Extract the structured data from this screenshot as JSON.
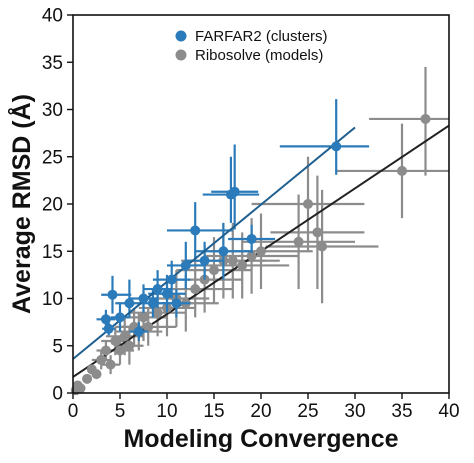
{
  "chart_data": {
    "type": "scatter",
    "xlabel": "Modeling Convergence",
    "ylabel": "Average RMSD (Å)",
    "xlim": [
      0,
      40
    ],
    "ylim": [
      0,
      40
    ],
    "x_ticks": [
      0,
      5,
      10,
      15,
      20,
      25,
      30,
      35,
      40
    ],
    "y_ticks": [
      0,
      5,
      10,
      15,
      20,
      25,
      30,
      35,
      40
    ],
    "grid": false,
    "legend_position": "top-center",
    "series": [
      {
        "name": "FARFAR2 (clusters)",
        "color": "#2b7bba",
        "fit_line": {
          "x": [
            0,
            30
          ],
          "y": [
            3.6,
            28.1
          ]
        },
        "points": [
          {
            "x": 3.5,
            "y": 7.8,
            "xerr": [
              1.0,
              1.0
            ],
            "yerr": [
              1.0,
              1.0
            ]
          },
          {
            "x": 3.8,
            "y": 6.8,
            "xerr": [
              0.7,
              0.7
            ],
            "yerr": [
              0.7,
              0.7
            ]
          },
          {
            "x": 4.2,
            "y": 10.4,
            "xerr": [
              1.2,
              2.0
            ],
            "yerr": [
              2.0,
              2.0
            ]
          },
          {
            "x": 5.0,
            "y": 8.0,
            "xerr": [
              1.0,
              1.0
            ],
            "yerr": [
              1.5,
              1.5
            ]
          },
          {
            "x": 6.0,
            "y": 9.5,
            "xerr": [
              1.5,
              1.5
            ],
            "yerr": [
              1.5,
              2.5
            ]
          },
          {
            "x": 7.0,
            "y": 6.5,
            "xerr": [
              1.0,
              1.0
            ],
            "yerr": [
              1.0,
              1.0
            ]
          },
          {
            "x": 7.5,
            "y": 10.0,
            "xerr": [
              1.5,
              1.5
            ],
            "yerr": [
              1.5,
              1.5
            ]
          },
          {
            "x": 8.5,
            "y": 9.5,
            "xerr": [
              1.5,
              1.5
            ],
            "yerr": [
              1.5,
              1.5
            ]
          },
          {
            "x": 9.0,
            "y": 11.0,
            "xerr": [
              1.5,
              1.5
            ],
            "yerr": [
              2.0,
              2.0
            ]
          },
          {
            "x": 10.0,
            "y": 10.5,
            "xerr": [
              2.0,
              2.0
            ],
            "yerr": [
              2.0,
              2.0
            ]
          },
          {
            "x": 10.5,
            "y": 12.0,
            "xerr": [
              2.0,
              2.0
            ],
            "yerr": [
              2.0,
              2.0
            ]
          },
          {
            "x": 11.0,
            "y": 9.5,
            "xerr": [
              1.5,
              1.5
            ],
            "yerr": [
              1.5,
              1.5
            ]
          },
          {
            "x": 12.0,
            "y": 13.5,
            "xerr": [
              2.0,
              2.0
            ],
            "yerr": [
              2.5,
              2.5
            ]
          },
          {
            "x": 13.0,
            "y": 17.2,
            "xerr": [
              3.0,
              4.0
            ],
            "yerr": [
              3.0,
              3.0
            ]
          },
          {
            "x": 14.0,
            "y": 14.0,
            "xerr": [
              2.0,
              2.0
            ],
            "yerr": [
              2.0,
              2.0
            ]
          },
          {
            "x": 16.0,
            "y": 15.0,
            "xerr": [
              3.0,
              3.0
            ],
            "yerr": [
              3.0,
              3.0
            ]
          },
          {
            "x": 16.8,
            "y": 21.0,
            "xerr": [
              3.0,
              3.0
            ],
            "yerr": [
              3.0,
              4.0
            ]
          },
          {
            "x": 17.2,
            "y": 21.3,
            "xerr": [
              2.5,
              2.5
            ],
            "yerr": [
              4.0,
              5.0
            ]
          },
          {
            "x": 19.0,
            "y": 16.3,
            "xerr": [
              2.5,
              2.5
            ],
            "yerr": [
              1.5,
              1.5
            ]
          },
          {
            "x": 28.0,
            "y": 26.1,
            "xerr": [
              6.0,
              3.5
            ],
            "yerr": [
              3.0,
              5.0
            ]
          }
        ]
      },
      {
        "name": "Ribosolve (models)",
        "color": "#8c8c8c",
        "fit_line": {
          "x": [
            0,
            40
          ],
          "y": [
            1.7,
            28.3
          ]
        },
        "points": [
          {
            "x": 0.3,
            "y": 0.3,
            "xerr": [
              0.2,
              0.2
            ],
            "yerr": [
              0.2,
              0.2
            ]
          },
          {
            "x": 0.5,
            "y": 0.8,
            "xerr": [
              0.3,
              0.3
            ],
            "yerr": [
              0.3,
              0.3
            ]
          },
          {
            "x": 0.8,
            "y": 0.5,
            "xerr": [
              0.3,
              0.3
            ],
            "yerr": [
              0.3,
              0.3
            ]
          },
          {
            "x": 1.5,
            "y": 1.5,
            "xerr": [
              0.5,
              0.5
            ],
            "yerr": [
              0.5,
              0.5
            ]
          },
          {
            "x": 2.0,
            "y": 2.5,
            "xerr": [
              0.5,
              0.5
            ],
            "yerr": [
              0.5,
              0.5
            ]
          },
          {
            "x": 2.5,
            "y": 2.0,
            "xerr": [
              0.5,
              0.5
            ],
            "yerr": [
              0.5,
              0.5
            ]
          },
          {
            "x": 3.0,
            "y": 3.5,
            "xerr": [
              1.0,
              1.0
            ],
            "yerr": [
              1.0,
              1.0
            ]
          },
          {
            "x": 3.5,
            "y": 4.5,
            "xerr": [
              1.0,
              1.0
            ],
            "yerr": [
              1.0,
              1.0
            ]
          },
          {
            "x": 4.0,
            "y": 3.0,
            "xerr": [
              1.0,
              1.0
            ],
            "yerr": [
              1.0,
              1.0
            ]
          },
          {
            "x": 4.5,
            "y": 5.5,
            "xerr": [
              1.5,
              1.5
            ],
            "yerr": [
              1.5,
              1.5
            ]
          },
          {
            "x": 5.0,
            "y": 4.5,
            "xerr": [
              1.5,
              1.5
            ],
            "yerr": [
              1.5,
              1.5
            ]
          },
          {
            "x": 5.5,
            "y": 6.0,
            "xerr": [
              2.0,
              2.0
            ],
            "yerr": [
              2.0,
              2.0
            ]
          },
          {
            "x": 6.0,
            "y": 5.0,
            "xerr": [
              1.5,
              1.5
            ],
            "yerr": [
              2.0,
              2.0
            ]
          },
          {
            "x": 6.5,
            "y": 7.0,
            "xerr": [
              2.0,
              2.0
            ],
            "yerr": [
              2.0,
              2.0
            ]
          },
          {
            "x": 7.0,
            "y": 6.5,
            "xerr": [
              2.5,
              2.5
            ],
            "yerr": [
              2.0,
              2.0
            ]
          },
          {
            "x": 7.5,
            "y": 8.0,
            "xerr": [
              2.5,
              2.5
            ],
            "yerr": [
              2.5,
              2.5
            ]
          },
          {
            "x": 8.0,
            "y": 7.0,
            "xerr": [
              3.0,
              3.0
            ],
            "yerr": [
              2.0,
              2.0
            ]
          },
          {
            "x": 9.0,
            "y": 8.5,
            "xerr": [
              3.0,
              3.0
            ],
            "yerr": [
              2.5,
              2.5
            ]
          },
          {
            "x": 10.0,
            "y": 9.0,
            "xerr": [
              3.0,
              3.0
            ],
            "yerr": [
              3.0,
              3.0
            ]
          },
          {
            "x": 11.0,
            "y": 10.0,
            "xerr": [
              3.5,
              3.5
            ],
            "yerr": [
              3.0,
              3.0
            ]
          },
          {
            "x": 12.0,
            "y": 9.5,
            "xerr": [
              3.5,
              3.5
            ],
            "yerr": [
              3.0,
              3.0
            ]
          },
          {
            "x": 13.0,
            "y": 11.0,
            "xerr": [
              4.0,
              4.0
            ],
            "yerr": [
              3.0,
              3.0
            ]
          },
          {
            "x": 14.0,
            "y": 12.0,
            "xerr": [
              4.0,
              4.0
            ],
            "yerr": [
              3.5,
              3.5
            ]
          },
          {
            "x": 15.0,
            "y": 13.0,
            "xerr": [
              4.0,
              4.0
            ],
            "yerr": [
              3.5,
              3.5
            ]
          },
          {
            "x": 16.0,
            "y": 14.0,
            "xerr": [
              4.5,
              4.5
            ],
            "yerr": [
              4.0,
              4.0
            ]
          },
          {
            "x": 17.0,
            "y": 14.0,
            "xerr": [
              5.0,
              5.0
            ],
            "yerr": [
              4.0,
              4.0
            ]
          },
          {
            "x": 18.0,
            "y": 13.5,
            "xerr": [
              5.0,
              5.0
            ],
            "yerr": [
              3.5,
              3.5
            ]
          },
          {
            "x": 19.0,
            "y": 14.5,
            "xerr": [
              5.0,
              5.0
            ],
            "yerr": [
              4.0,
              4.0
            ]
          },
          {
            "x": 20.0,
            "y": 15.0,
            "xerr": [
              5.5,
              5.5
            ],
            "yerr": [
              4.0,
              4.0
            ]
          },
          {
            "x": 24.0,
            "y": 16.0,
            "xerr": [
              6.0,
              6.0
            ],
            "yerr": [
              5.0,
              5.0
            ]
          },
          {
            "x": 25.0,
            "y": 20.0,
            "xerr": [
              6.0,
              6.0
            ],
            "yerr": [
              5.0,
              5.0
            ]
          },
          {
            "x": 26.0,
            "y": 17.0,
            "xerr": [
              5.0,
              5.0
            ],
            "yerr": [
              6.0,
              6.0
            ]
          },
          {
            "x": 26.5,
            "y": 15.5,
            "xerr": [
              6.0,
              6.0
            ],
            "yerr": [
              6.0,
              6.0
            ]
          },
          {
            "x": 35.0,
            "y": 23.5,
            "xerr": [
              7.0,
              5.0
            ],
            "yerr": [
              5.0,
              5.0
            ]
          },
          {
            "x": 37.5,
            "y": 29.0,
            "xerr": [
              6.0,
              2.5
            ],
            "yerr": [
              6.0,
              5.5
            ]
          }
        ]
      }
    ]
  }
}
